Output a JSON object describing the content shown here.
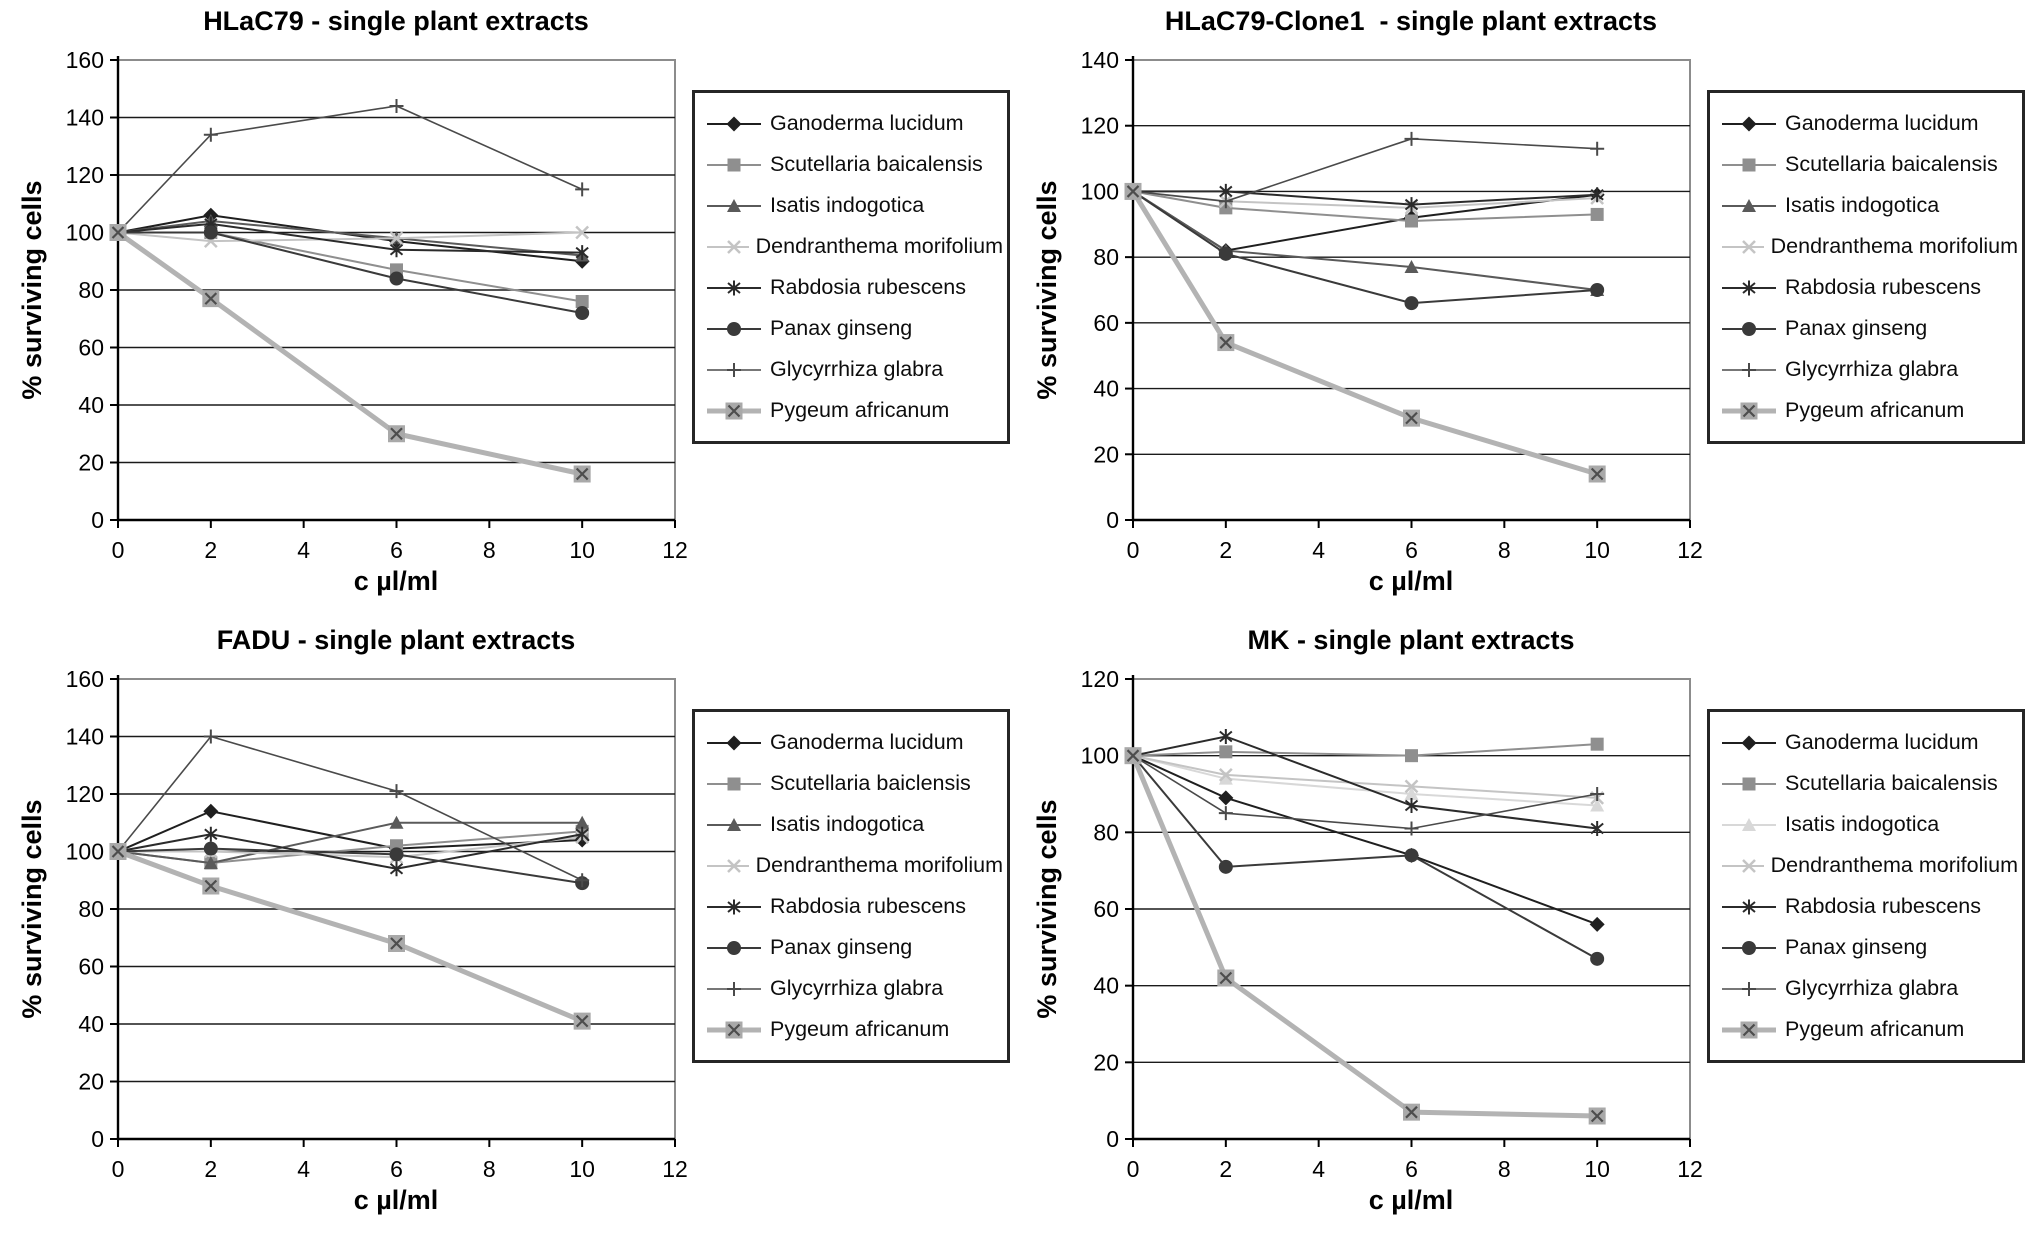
{
  "chart_data": [
    {
      "type": "line",
      "title": "HLaC79 - single plant extracts",
      "xlabel": "c µl/ml",
      "ylabel": "% surviving cells",
      "xlim": [
        0,
        12
      ],
      "ylim": [
        0,
        160
      ],
      "xticks": [
        0,
        2,
        4,
        6,
        8,
        10,
        12
      ],
      "yticks": [
        0,
        20,
        40,
        60,
        80,
        100,
        120,
        140,
        160
      ],
      "grid": true,
      "legend_position": "right",
      "x": [
        0,
        2,
        6,
        10
      ],
      "series": [
        {
          "name": "Ganoderma lucidum",
          "marker": "diamond",
          "color": "#1f1f1f",
          "line_width": 2,
          "values": [
            100,
            106,
            97,
            90
          ]
        },
        {
          "name": "Scutellaria baicalensis",
          "marker": "square",
          "color": "#8f8f8f",
          "line_width": 2,
          "values": [
            100,
            100,
            87,
            76
          ]
        },
        {
          "name": "Isatis indogotica",
          "marker": "triangle",
          "color": "#5a5a5a",
          "line_width": 2,
          "values": [
            100,
            104,
            98,
            92
          ]
        },
        {
          "name": "Dendranthema morifolium",
          "marker": "x",
          "color": "#c4c4c4",
          "line_width": 2,
          "values": [
            100,
            97,
            98,
            100
          ]
        },
        {
          "name": "Rabdosia rubescens",
          "marker": "asterisk",
          "color": "#2b2b2b",
          "line_width": 2,
          "values": [
            100,
            103,
            94,
            93
          ]
        },
        {
          "name": "Panax ginseng",
          "marker": "circle",
          "color": "#3a3a3a",
          "line_width": 2,
          "values": [
            100,
            100,
            84,
            72
          ]
        },
        {
          "name": "Glycyrrhiza glabra",
          "marker": "plus",
          "color": "#4a4a4a",
          "line_width": 1.6,
          "values": [
            100,
            134,
            144,
            115
          ]
        },
        {
          "name": "Pygeum africanum",
          "marker": "boxed-x",
          "color": "#b3b3b3",
          "line_width": 5,
          "values": [
            100,
            77,
            30,
            16
          ]
        }
      ]
    },
    {
      "type": "line",
      "title": "HLaC79-Clone1  - single plant extracts",
      "xlabel": "c µl/ml",
      "ylabel": "% surviving cells",
      "xlim": [
        0,
        12
      ],
      "ylim": [
        0,
        140
      ],
      "xticks": [
        0,
        2,
        4,
        6,
        8,
        10,
        12
      ],
      "yticks": [
        0,
        20,
        40,
        60,
        80,
        100,
        120,
        140
      ],
      "grid": true,
      "legend_position": "right",
      "x": [
        0,
        2,
        6,
        10
      ],
      "series": [
        {
          "name": "Ganoderma lucidum",
          "marker": "diamond",
          "color": "#1f1f1f",
          "line_width": 2,
          "values": [
            100,
            82,
            92,
            99
          ]
        },
        {
          "name": "Scutellaria baicalensis",
          "marker": "square",
          "color": "#8f8f8f",
          "line_width": 2,
          "values": [
            100,
            95,
            91,
            93
          ]
        },
        {
          "name": "Isatis indogotica",
          "marker": "triangle",
          "color": "#5a5a5a",
          "line_width": 2,
          "values": [
            100,
            82,
            77,
            70
          ]
        },
        {
          "name": "Dendranthema morifolium",
          "marker": "x",
          "color": "#c4c4c4",
          "line_width": 2,
          "values": [
            100,
            97,
            95,
            98
          ]
        },
        {
          "name": "Rabdosia rubescens",
          "marker": "asterisk",
          "color": "#2b2b2b",
          "line_width": 2,
          "values": [
            100,
            100,
            96,
            99
          ]
        },
        {
          "name": "Panax ginseng",
          "marker": "circle",
          "color": "#3a3a3a",
          "line_width": 2,
          "values": [
            100,
            81,
            66,
            70
          ]
        },
        {
          "name": "Glycyrrhiza glabra",
          "marker": "plus",
          "color": "#4a4a4a",
          "line_width": 1.6,
          "values": [
            100,
            97,
            116,
            113
          ]
        },
        {
          "name": "Pygeum africanum",
          "marker": "boxed-x",
          "color": "#b3b3b3",
          "line_width": 5,
          "values": [
            100,
            54,
            31,
            14
          ]
        }
      ]
    },
    {
      "type": "line",
      "title": "FADU - single plant extracts",
      "xlabel": "c µl/ml",
      "ylabel": "% surviving cells",
      "xlim": [
        0,
        12
      ],
      "ylim": [
        0,
        160
      ],
      "xticks": [
        0,
        2,
        4,
        6,
        8,
        10,
        12
      ],
      "yticks": [
        0,
        20,
        40,
        60,
        80,
        100,
        120,
        140,
        160
      ],
      "grid": true,
      "legend_position": "right",
      "x": [
        0,
        2,
        6,
        10
      ],
      "series": [
        {
          "name": "Ganoderma lucidum",
          "marker": "diamond",
          "color": "#1f1f1f",
          "line_width": 2,
          "values": [
            100,
            114,
            101,
            104
          ]
        },
        {
          "name": "Scutellaria baiclensis",
          "marker": "square",
          "color": "#8f8f8f",
          "line_width": 2,
          "values": [
            100,
            96,
            102,
            107
          ]
        },
        {
          "name": "Isatis indogotica",
          "marker": "triangle",
          "color": "#5a5a5a",
          "line_width": 2,
          "values": [
            100,
            96,
            110,
            110
          ]
        },
        {
          "name": "Dendranthema morifolium",
          "marker": "x",
          "color": "#c4c4c4",
          "line_width": 2,
          "values": [
            100,
            100,
            98,
            105
          ]
        },
        {
          "name": "Rabdosia rubescens",
          "marker": "asterisk",
          "color": "#2b2b2b",
          "line_width": 2,
          "values": [
            100,
            106,
            94,
            106
          ]
        },
        {
          "name": "Panax ginseng",
          "marker": "circle",
          "color": "#3a3a3a",
          "line_width": 2,
          "values": [
            100,
            101,
            99,
            89
          ]
        },
        {
          "name": "Glycyrrhiza glabra",
          "marker": "plus",
          "color": "#4a4a4a",
          "line_width": 1.6,
          "values": [
            100,
            140,
            121,
            90
          ]
        },
        {
          "name": "Pygeum africanum",
          "marker": "boxed-x",
          "color": "#b3b3b3",
          "line_width": 5,
          "values": [
            100,
            88,
            68,
            41
          ]
        }
      ]
    },
    {
      "type": "line",
      "title": "MK - single plant extracts",
      "xlabel": "c µl/ml",
      "ylabel": "% surviving cells",
      "xlim": [
        0,
        12
      ],
      "ylim": [
        0,
        120
      ],
      "xticks": [
        0,
        2,
        4,
        6,
        8,
        10,
        12
      ],
      "yticks": [
        0,
        20,
        40,
        60,
        80,
        100,
        120
      ],
      "grid": true,
      "legend_position": "right",
      "x": [
        0,
        2,
        6,
        10
      ],
      "series": [
        {
          "name": "Ganoderma lucidum",
          "marker": "diamond",
          "color": "#1f1f1f",
          "line_width": 2,
          "values": [
            100,
            89,
            74,
            56
          ]
        },
        {
          "name": "Scutellaria baicalensis",
          "marker": "square",
          "color": "#8f8f8f",
          "line_width": 2,
          "values": [
            100,
            101,
            100,
            103
          ]
        },
        {
          "name": "Isatis indogotica",
          "marker": "triangle",
          "color": "#d8d8d8",
          "line_width": 2,
          "values": [
            100,
            94,
            90,
            87
          ]
        },
        {
          "name": "Dendranthema morifolium",
          "marker": "x",
          "color": "#c4c4c4",
          "line_width": 2,
          "values": [
            100,
            95,
            92,
            89
          ]
        },
        {
          "name": "Rabdosia rubescens",
          "marker": "asterisk",
          "color": "#2b2b2b",
          "line_width": 2,
          "values": [
            100,
            105,
            87,
            81
          ]
        },
        {
          "name": "Panax ginseng",
          "marker": "circle",
          "color": "#3a3a3a",
          "line_width": 2,
          "values": [
            100,
            71,
            74,
            47
          ]
        },
        {
          "name": "Glycyrrhiza glabra",
          "marker": "plus",
          "color": "#4a4a4a",
          "line_width": 1.6,
          "values": [
            100,
            85,
            81,
            90
          ]
        },
        {
          "name": "Pygeum africanum",
          "marker": "boxed-x",
          "color": "#b3b3b3",
          "line_width": 5,
          "values": [
            100,
            42,
            7,
            6
          ]
        }
      ]
    }
  ]
}
